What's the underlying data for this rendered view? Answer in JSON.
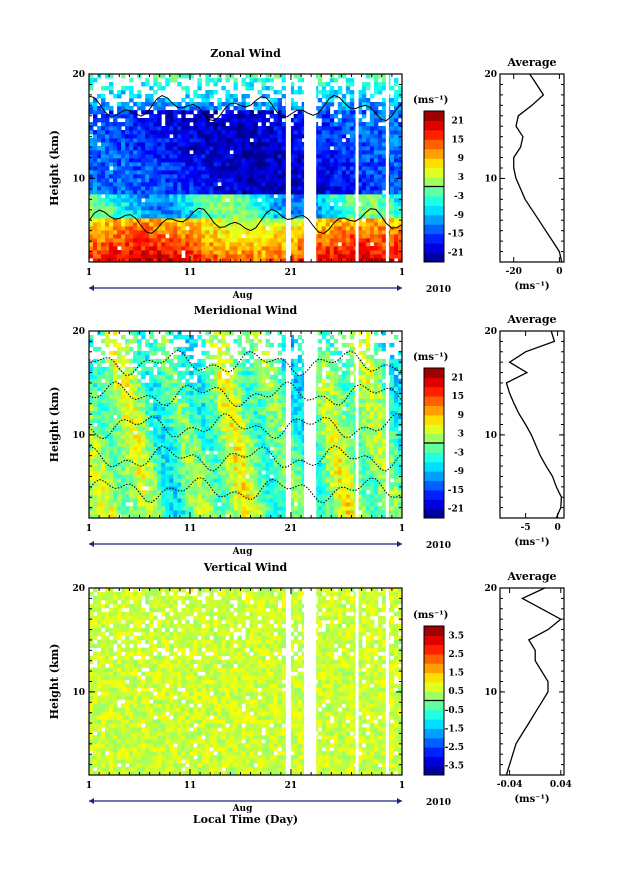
{
  "figure": {
    "xlabel": "Local Time (Day)",
    "month_label": "Aug",
    "year_label": "2010",
    "colorbar_unit": "(ms⁻¹)",
    "average_unit": "(ms⁻¹)"
  },
  "chart_data": [
    {
      "type": "heatmap",
      "title": "Zonal Wind",
      "ylabel": "Height (km)",
      "xlim": [
        1,
        32
      ],
      "x_ticks": [
        "1",
        "11",
        "21",
        "1"
      ],
      "ylim": [
        2,
        20
      ],
      "y_ticks": [
        "10",
        "20"
      ],
      "colorbar": {
        "ticks": [
          "21",
          "15",
          "9",
          "3",
          "-3",
          "-9",
          "-15",
          "-21"
        ],
        "range": [
          -24,
          24
        ]
      },
      "field": {
        "description_values": {
          "low_level_max": 21,
          "jet_min": -21
        },
        "gaps_day": [
          20.6,
          22.5,
          27.4,
          30.4
        ],
        "gap_width_day": [
          0.4,
          1.1,
          0.3,
          0.3
        ]
      },
      "average": {
        "title": "Average",
        "xlim": [
          -26,
          2
        ],
        "x_ticks": [
          "-20",
          "0"
        ],
        "heights": [
          2,
          3,
          4,
          5,
          6,
          7,
          8,
          9,
          10,
          11,
          12,
          13,
          14,
          15,
          16,
          17,
          18,
          19,
          20
        ],
        "values": [
          1,
          0,
          -3,
          -6,
          -9,
          -12,
          -15,
          -17,
          -19,
          -20,
          -20,
          -17,
          -16,
          -19,
          -18,
          -12,
          -7,
          -10,
          -13
        ]
      }
    },
    {
      "type": "heatmap",
      "title": "Meridional Wind",
      "ylabel": "Height (km)",
      "xlim": [
        1,
        32
      ],
      "x_ticks": [
        "1",
        "11",
        "21",
        "1"
      ],
      "ylim": [
        2,
        20
      ],
      "y_ticks": [
        "10",
        "20"
      ],
      "colorbar": {
        "ticks": [
          "21",
          "15",
          "9",
          "3",
          "-3",
          "-9",
          "-15",
          "-21"
        ],
        "range": [
          -24,
          24
        ]
      },
      "average": {
        "title": "Average",
        "xlim": [
          -9,
          1
        ],
        "x_ticks": [
          "-5",
          "0"
        ],
        "heights": [
          2,
          3,
          4,
          5,
          6,
          7,
          8,
          9,
          10,
          11,
          12,
          13,
          14,
          15,
          16,
          17,
          18,
          19,
          20
        ],
        "values": [
          -0.2,
          0.5,
          0.6,
          -0.2,
          -0.8,
          -1.8,
          -2.7,
          -3.4,
          -4.1,
          -5.0,
          -6.0,
          -6.8,
          -7.5,
          -8.0,
          -4.8,
          -7.5,
          -5.0,
          -0.5,
          -1.0
        ]
      }
    },
    {
      "type": "heatmap",
      "title": "Vertical Wind",
      "ylabel": "Height (km)",
      "xlim": [
        1,
        32
      ],
      "x_ticks": [
        "1",
        "11",
        "21",
        "1"
      ],
      "ylim": [
        2,
        20
      ],
      "y_ticks": [
        "10",
        "20"
      ],
      "colorbar": {
        "ticks": [
          "3.5",
          "2.5",
          "1.5",
          "0.5",
          "-0.5",
          "-1.5",
          "-2.5",
          "-3.5"
        ],
        "range": [
          -4,
          4
        ]
      },
      "average": {
        "title": "Average",
        "xlim": [
          -0.055,
          0.045
        ],
        "x_ticks": [
          "-0.04",
          "0.04"
        ],
        "heights": [
          2,
          3,
          4,
          5,
          6,
          7,
          8,
          9,
          10,
          11,
          12,
          13,
          14,
          15,
          16,
          17,
          18,
          19,
          20
        ],
        "values": [
          -0.045,
          -0.04,
          -0.035,
          -0.03,
          -0.02,
          -0.01,
          0.0,
          0.01,
          0.02,
          0.02,
          0.01,
          0.0,
          0.0,
          -0.01,
          0.02,
          0.04,
          0.01,
          -0.02,
          0.015
        ]
      }
    }
  ]
}
